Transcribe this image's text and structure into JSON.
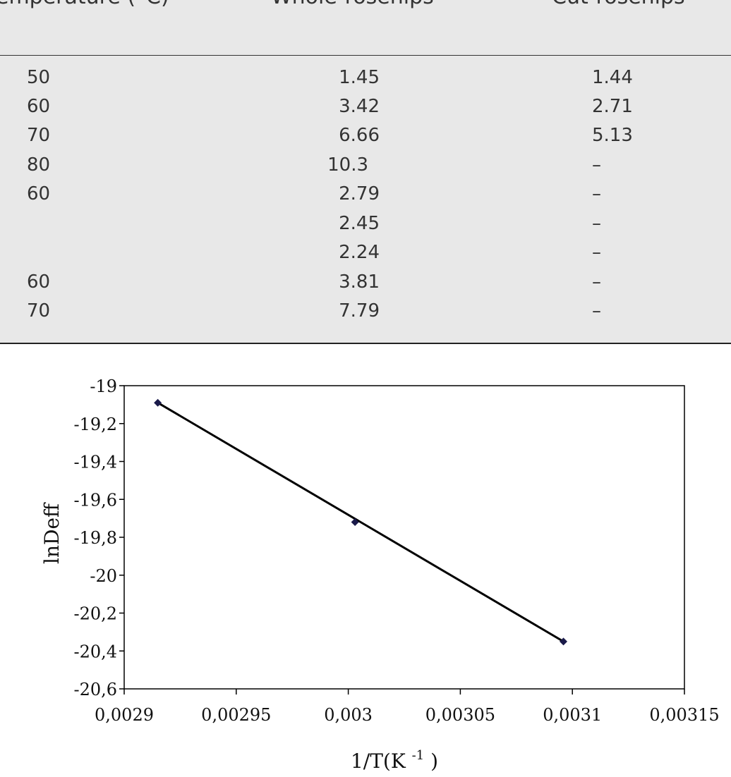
{
  "table": {
    "headers": [
      "emperature (°C)",
      "Whole-rosehips",
      "Cut-rosehips"
    ],
    "rows": [
      [
        "50",
        "1.45",
        "1.44"
      ],
      [
        "60",
        "3.42",
        "2.71"
      ],
      [
        "70",
        "6.66",
        "5.13"
      ],
      [
        "80",
        "10.3",
        "–"
      ],
      [
        "60",
        "2.79",
        "–"
      ],
      [
        "",
        "2.45",
        "–"
      ],
      [
        "",
        "2.24",
        "–"
      ],
      [
        "60",
        "3.81",
        "–"
      ],
      [
        "70",
        "7.79",
        "–"
      ]
    ]
  },
  "chart_data": {
    "type": "scatter",
    "title": "",
    "xlabel": "1/T(K",
    "xlabel_sup": "-1",
    "xlabel_end": ")",
    "ylabel": "lnDeff",
    "xlim": [
      0.0029,
      0.00315
    ],
    "ylim": [
      -20.6,
      -19
    ],
    "x_ticks": [
      0.0029,
      0.00295,
      0.003,
      0.00305,
      0.0031,
      0.00315
    ],
    "x_tick_labels": [
      "0,0029",
      "0,00295",
      "0,003",
      "0,00305",
      "0,0031",
      "0,00315"
    ],
    "y_ticks": [
      -19,
      -19.2,
      -19.4,
      -19.6,
      -19.8,
      -20,
      -20.2,
      -20.4,
      -20.6
    ],
    "y_tick_labels": [
      "-19",
      "-19,2",
      "-19,4",
      "-19,6",
      "-19,8",
      "-20",
      "-20,2",
      "-20,4",
      "-20,6"
    ],
    "series": [
      {
        "x": [
          0.002915,
          0.003003,
          0.003096
        ],
        "y": [
          -19.09,
          -19.72,
          -20.35
        ],
        "marker_color": "#1a1a4a",
        "trendline": true
      }
    ],
    "grid": false,
    "legend": "none"
  }
}
